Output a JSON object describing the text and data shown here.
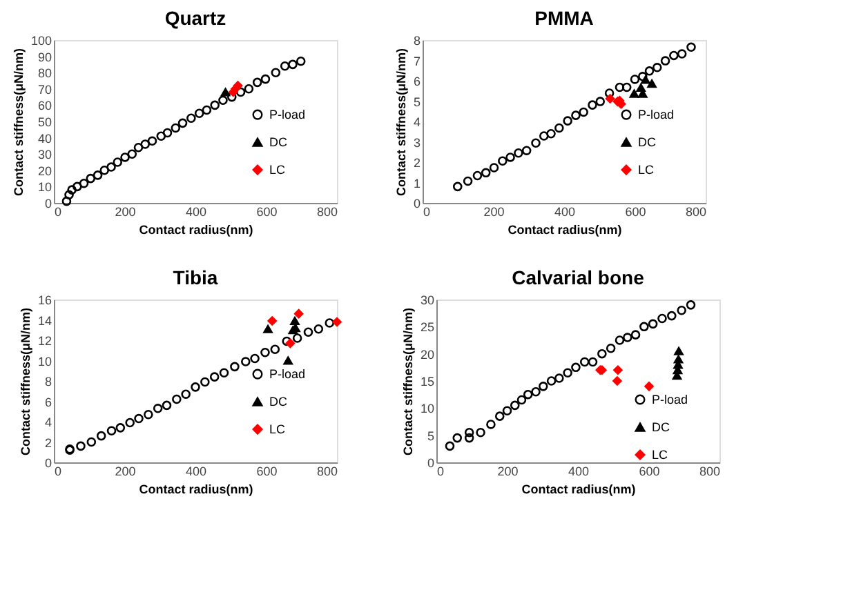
{
  "chart_data": [
    {
      "type": "scatter",
      "title": "Quartz",
      "xlabel": "Contact radius(nm)",
      "ylabel": "Contact stiffness(μN/nm)",
      "xlim": [
        0,
        800
      ],
      "xticks": [
        0,
        200,
        400,
        600,
        800
      ],
      "ylim": [
        0,
        100
      ],
      "yticks": [
        0,
        10,
        20,
        30,
        40,
        50,
        60,
        70,
        80,
        90,
        100
      ],
      "legend": "right",
      "series": [
        {
          "name": "P-load",
          "color": "#000000",
          "marker": "circle",
          "x": [
            36,
            43,
            51,
            66,
            85,
            104,
            124,
            143,
            162,
            180,
            201,
            221,
            239,
            258,
            278,
            303,
            321,
            344,
            364,
            388,
            411,
            432,
            455,
            478,
            503,
            528,
            551,
            575,
            598,
            627,
            653,
            675,
            698
          ],
          "values": [
            1,
            5,
            8,
            10,
            12,
            15,
            17,
            20,
            22,
            25,
            28,
            30,
            34,
            36,
            38,
            41,
            43,
            46,
            49,
            52,
            55,
            57,
            60,
            63,
            65,
            68,
            70,
            74,
            76,
            80,
            84,
            85,
            87
          ]
        },
        {
          "name": "DC",
          "color": "#000000",
          "marker": "triangle",
          "x": [
            485
          ],
          "values": [
            68
          ]
        },
        {
          "name": "LC",
          "color": "#ff0000",
          "marker": "diamond",
          "x": [
            507,
            513,
            520
          ],
          "values": [
            68,
            70,
            72
          ]
        }
      ]
    },
    {
      "type": "scatter",
      "title": "PMMA",
      "xlabel": "Contact radius(nm)",
      "ylabel": "Contact stiffness(μN/nm)",
      "xlim": [
        0,
        800
      ],
      "xticks": [
        0,
        200,
        400,
        600,
        800
      ],
      "ylim": [
        0,
        8
      ],
      "yticks": [
        0,
        1,
        2,
        3,
        4,
        5,
        6,
        7,
        8
      ],
      "legend": "right",
      "series": [
        {
          "name": "P-load",
          "color": "#000000",
          "marker": "circle",
          "x": [
            99,
            128,
            155,
            179,
            202,
            226,
            248,
            271,
            294,
            320,
            343,
            363,
            386,
            410,
            433,
            455,
            480,
            502,
            528,
            557,
            577,
            600,
            622,
            641,
            663,
            686,
            710,
            733,
            759
          ],
          "values": [
            0.8,
            1.07,
            1.34,
            1.48,
            1.73,
            2.06,
            2.24,
            2.45,
            2.57,
            2.94,
            3.29,
            3.4,
            3.68,
            4.03,
            4.3,
            4.46,
            4.81,
            4.98,
            5.39,
            5.68,
            5.68,
            6.07,
            6.21,
            6.48,
            6.65,
            6.98,
            7.24,
            7.32,
            7.65
          ]
        },
        {
          "name": "DC",
          "color": "#000000",
          "marker": "triangle",
          "x": [
            598,
            617,
            622,
            630,
            648
          ],
          "values": [
            5.37,
            5.66,
            5.37,
            6.05,
            5.86
          ]
        },
        {
          "name": "LC",
          "color": "#ff0000",
          "marker": "diamond",
          "x": [
            530,
            551,
            557,
            561
          ],
          "values": [
            5.12,
            4.98,
            5.02,
            4.86
          ]
        }
      ]
    },
    {
      "type": "scatter",
      "title": "Tibia",
      "xlabel": "Contact radius(nm)",
      "ylabel": "Contact stiffness(μN/nm)",
      "xlim": [
        0,
        800
      ],
      "xticks": [
        0,
        200,
        400,
        600,
        800
      ],
      "ylim": [
        0,
        16
      ],
      "yticks": [
        0,
        2,
        4,
        6,
        8,
        10,
        12,
        14,
        16
      ],
      "legend": "right",
      "series": [
        {
          "name": "P-load",
          "color": "#000000",
          "marker": "circle",
          "x": [
            45,
            45,
            76,
            106,
            134,
            163,
            188,
            215,
            240,
            267,
            294,
            319,
            347,
            373,
            400,
            427,
            454,
            481,
            511,
            542,
            568,
            597,
            625,
            658,
            688,
            719,
            748,
            779
          ],
          "values": [
            1.2,
            1.3,
            1.6,
            2,
            2.6,
            3.1,
            3.4,
            3.9,
            4.3,
            4.7,
            5.3,
            5.6,
            6.2,
            6.7,
            7.4,
            7.9,
            8.4,
            8.8,
            9.4,
            9.9,
            10.2,
            10.8,
            11.1,
            11.9,
            12.2,
            12.8,
            13.1,
            13.7
          ]
        },
        {
          "name": "DC",
          "color": "#000000",
          "marker": "triangle",
          "x": [
            605,
            662,
            676,
            681,
            683
          ],
          "values": [
            13.1,
            10,
            13,
            13.9,
            13.2
          ]
        },
        {
          "name": "LC",
          "color": "#ff0000",
          "marker": "diamond",
          "x": [
            617,
            668,
            692,
            800
          ],
          "values": [
            13.9,
            11.7,
            14.6,
            13.8
          ]
        }
      ]
    },
    {
      "type": "scatter",
      "title": "Calvarial bone",
      "xlabel": "Contact radius(nm)",
      "ylabel": "Contact stiffness(μN/nm)",
      "xlim": [
        0,
        800
      ],
      "xticks": [
        0,
        200,
        400,
        600,
        800
      ],
      "ylim": [
        0,
        30
      ],
      "yticks": [
        0,
        5,
        10,
        15,
        20,
        25,
        30
      ],
      "legend": "bottom right",
      "series": [
        {
          "name": "P-load",
          "color": "#000000",
          "marker": "circle",
          "x": [
            38,
            59,
            93,
            93,
            125,
            154,
            179,
            200,
            222,
            241,
            259,
            281,
            302,
            325,
            347,
            371,
            394,
            419,
            442,
            468,
            493,
            518,
            540,
            563,
            587,
            612,
            638,
            665,
            693,
            719
          ],
          "values": [
            3,
            4.5,
            4.5,
            5.5,
            5.5,
            7,
            8.5,
            9.5,
            10.5,
            11.5,
            12.5,
            13,
            14,
            15,
            15.5,
            16.5,
            17.5,
            18.5,
            18.5,
            20,
            21,
            22.5,
            23,
            23.5,
            25,
            25.5,
            26.5,
            27,
            28,
            29
          ]
        },
        {
          "name": "DC",
          "color": "#000000",
          "marker": "triangle",
          "x": [
            680,
            682,
            683,
            684,
            685
          ],
          "values": [
            16,
            17,
            18,
            19,
            20.5
          ]
        },
        {
          "name": "LC",
          "color": "#ff0000",
          "marker": "diamond",
          "x": [
            463,
            468,
            513,
            511,
            601
          ],
          "values": [
            17,
            17,
            17,
            15,
            14
          ]
        }
      ]
    }
  ]
}
